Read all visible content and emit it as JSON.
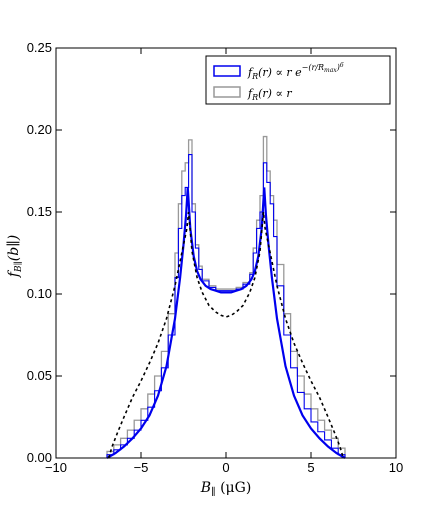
{
  "chart_data": {
    "type": "line",
    "xlabel_main": "B",
    "xlabel_sub": "∥",
    "xlabel_unit": " (μG)",
    "ylabel_main": "f",
    "ylabel_sub": "B∥",
    "ylabel_arg": "(b∥)",
    "xlim": [
      -10,
      10
    ],
    "ylim": [
      0,
      0.25
    ],
    "xticks": [
      -10,
      -5,
      0,
      5,
      10
    ],
    "xtick_labels": [
      "−10",
      "−5",
      "0",
      "5",
      "10"
    ],
    "yticks": [
      0.0,
      0.05,
      0.1,
      0.15,
      0.2,
      0.25
    ],
    "ytick_labels": [
      "0.00",
      "0.05",
      "0.10",
      "0.15",
      "0.20",
      "0.25"
    ],
    "grid": false,
    "legend_position": "top-right",
    "legend": [
      {
        "text": "f_R(r) ∝ r e^{−(r/R_max)^6}",
        "color": "#0000ee",
        "style": "box"
      },
      {
        "text": "f_R(r) ∝ r",
        "color": "#999999",
        "style": "box"
      }
    ],
    "series": [
      {
        "name": "f_R(r) ∝ r e^{−(r/R_max)^6}",
        "kind": "histogram",
        "color": "#0000ee",
        "bin_edges": [
          -7.0,
          -6.6,
          -6.2,
          -5.8,
          -5.4,
          -5.0,
          -4.6,
          -4.2,
          -3.8,
          -3.4,
          -3.0,
          -2.8,
          -2.6,
          -2.4,
          -2.2,
          -2.0,
          -1.8,
          -1.6,
          -1.4,
          -1.0,
          -0.6,
          -0.2,
          0.2,
          0.6,
          1.0,
          1.4,
          1.6,
          1.8,
          2.0,
          2.2,
          2.4,
          2.6,
          2.8,
          3.0,
          3.4,
          3.8,
          4.2,
          4.6,
          5.0,
          5.4,
          5.8,
          6.2,
          6.6,
          7.0
        ],
        "values": [
          0.002,
          0.005,
          0.008,
          0.012,
          0.017,
          0.023,
          0.031,
          0.041,
          0.055,
          0.075,
          0.11,
          0.14,
          0.16,
          0.165,
          0.185,
          0.15,
          0.128,
          0.115,
          0.108,
          0.104,
          0.102,
          0.102,
          0.102,
          0.103,
          0.106,
          0.112,
          0.125,
          0.14,
          0.15,
          0.18,
          0.168,
          0.155,
          0.135,
          0.105,
          0.075,
          0.055,
          0.04,
          0.03,
          0.022,
          0.016,
          0.011,
          0.006,
          0.002
        ]
      },
      {
        "name": "f_R(r) ∝ r",
        "kind": "histogram",
        "color": "#999999",
        "bin_edges": [
          -7.0,
          -6.6,
          -6.2,
          -5.8,
          -5.4,
          -5.0,
          -4.6,
          -4.2,
          -3.8,
          -3.4,
          -3.0,
          -2.8,
          -2.6,
          -2.4,
          -2.2,
          -2.0,
          -1.8,
          -1.6,
          -1.4,
          -1.0,
          -0.6,
          -0.2,
          0.2,
          0.6,
          1.0,
          1.4,
          1.6,
          1.8,
          2.0,
          2.2,
          2.4,
          2.6,
          2.8,
          3.0,
          3.4,
          3.8,
          4.2,
          4.6,
          5.0,
          5.4,
          5.8,
          6.2,
          6.6,
          7.0
        ],
        "values": [
          0.004,
          0.008,
          0.012,
          0.017,
          0.023,
          0.03,
          0.039,
          0.05,
          0.065,
          0.088,
          0.125,
          0.155,
          0.175,
          0.18,
          0.194,
          0.155,
          0.13,
          0.117,
          0.109,
          0.105,
          0.103,
          0.103,
          0.103,
          0.104,
          0.107,
          0.113,
          0.128,
          0.145,
          0.16,
          0.196,
          0.175,
          0.16,
          0.145,
          0.118,
          0.088,
          0.065,
          0.05,
          0.039,
          0.03,
          0.023,
          0.017,
          0.012,
          0.006
        ]
      },
      {
        "name": "",
        "kind": "curve",
        "color": "#0000ee",
        "x": [
          -7.0,
          -6.5,
          -6.0,
          -5.5,
          -5.0,
          -4.5,
          -4.0,
          -3.5,
          -3.0,
          -2.7,
          -2.5,
          -2.35,
          -2.25,
          -2.1,
          -1.9,
          -1.7,
          -1.5,
          -1.2,
          -0.9,
          -0.6,
          -0.3,
          0.0,
          0.3,
          0.6,
          0.9,
          1.2,
          1.5,
          1.7,
          1.9,
          2.1,
          2.25,
          2.35,
          2.5,
          2.7,
          3.0,
          3.5,
          4.0,
          4.5,
          5.0,
          5.5,
          6.0,
          6.5,
          7.0
        ],
        "y": [
          0.0,
          0.003,
          0.007,
          0.012,
          0.018,
          0.026,
          0.038,
          0.056,
          0.085,
          0.11,
          0.13,
          0.148,
          0.165,
          0.14,
          0.123,
          0.114,
          0.109,
          0.105,
          0.103,
          0.102,
          0.101,
          0.101,
          0.101,
          0.102,
          0.103,
          0.105,
          0.109,
          0.114,
          0.123,
          0.14,
          0.165,
          0.148,
          0.13,
          0.11,
          0.085,
          0.056,
          0.038,
          0.026,
          0.018,
          0.012,
          0.007,
          0.003,
          0.0
        ]
      },
      {
        "name": "",
        "kind": "curve",
        "color": "#000000",
        "dashed": true,
        "x": [
          -6.9,
          -6.7,
          -6.4,
          -6.0,
          -5.5,
          -5.0,
          -4.5,
          -4.0,
          -3.5,
          -3.0,
          -2.6,
          -2.3,
          -2.2,
          -2.0,
          -1.7,
          -1.4,
          -1.0,
          -0.6,
          -0.3,
          0.0,
          0.3,
          0.6,
          1.0,
          1.4,
          1.7,
          2.0,
          2.2,
          2.3,
          2.6,
          3.0,
          3.5,
          4.0,
          4.5,
          5.0,
          5.5,
          6.0,
          6.4,
          6.7,
          6.9
        ],
        "y": [
          0.0,
          0.007,
          0.015,
          0.025,
          0.037,
          0.047,
          0.058,
          0.07,
          0.085,
          0.105,
          0.125,
          0.14,
          0.15,
          0.126,
          0.11,
          0.101,
          0.093,
          0.089,
          0.087,
          0.086,
          0.087,
          0.089,
          0.093,
          0.101,
          0.11,
          0.126,
          0.15,
          0.14,
          0.125,
          0.105,
          0.085,
          0.07,
          0.058,
          0.047,
          0.037,
          0.025,
          0.015,
          0.007,
          0.0
        ]
      }
    ]
  }
}
